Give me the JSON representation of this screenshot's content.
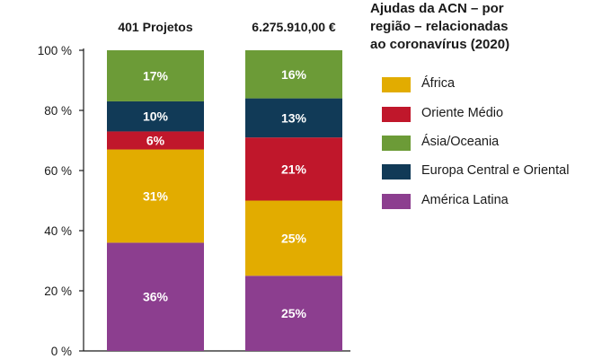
{
  "title_lines": [
    "Ajudas da ACN – por",
    "região – relacionadas",
    "ao coronavírus (2020)"
  ],
  "colors": {
    "africa": "#e2ac00",
    "oriente_medio": "#c0172b",
    "asia_oceania": "#6c9b37",
    "europa": "#113a57",
    "america_latina": "#8c3e8f",
    "axis": "#1a1a1a"
  },
  "legend": [
    {
      "label": "África",
      "color_key": "africa"
    },
    {
      "label": "Oriente Médio",
      "color_key": "oriente_medio"
    },
    {
      "label": "Ásia/Oceania",
      "color_key": "asia_oceania"
    },
    {
      "label": "Europa Central e Oriental",
      "color_key": "europa"
    },
    {
      "label": "América Latina",
      "color_key": "america_latina"
    }
  ],
  "chart_data": {
    "type": "bar",
    "stacked": true,
    "categories": [
      "401 Projetos",
      "6.275.910,00 €"
    ],
    "series": [
      {
        "name": "América Latina",
        "color_key": "america_latina",
        "values": [
          36,
          25
        ]
      },
      {
        "name": "África",
        "color_key": "africa",
        "values": [
          31,
          25
        ]
      },
      {
        "name": "Oriente Médio",
        "color_key": "oriente_medio",
        "values": [
          6,
          21
        ]
      },
      {
        "name": "Europa Central e Oriental",
        "color_key": "europa",
        "values": [
          10,
          13
        ]
      },
      {
        "name": "Ásia/Oceania",
        "color_key": "asia_oceania",
        "values": [
          17,
          16
        ]
      }
    ],
    "data_labels": [
      [
        "36%",
        "31%",
        "6%",
        "10%",
        "17%"
      ],
      [
        "25%",
        "25%",
        "21%",
        "13%",
        "16%"
      ]
    ],
    "ylim": [
      0,
      100
    ],
    "y_ticks": [
      0,
      20,
      40,
      60,
      80,
      100
    ],
    "y_tick_labels": [
      "0 %",
      "20 %",
      "40 %",
      "60 %",
      "80 %",
      "100 %"
    ],
    "grid": false,
    "legend_position": "right"
  }
}
